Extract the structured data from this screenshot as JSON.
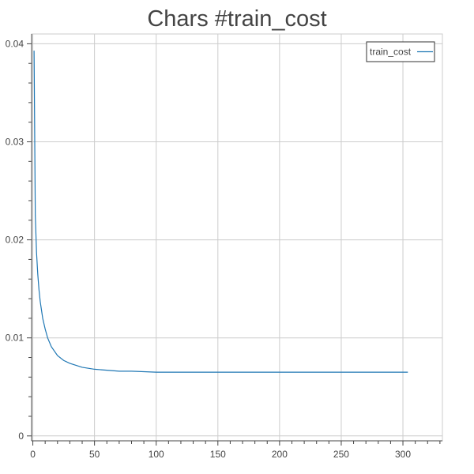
{
  "chart_data": {
    "type": "line",
    "title": "Chars #train_cost",
    "xlabel": "",
    "ylabel": "",
    "xlim": [
      -1,
      332
    ],
    "ylim": [
      -0.0005,
      0.041
    ],
    "x_ticks": [
      0,
      50,
      100,
      150,
      200,
      250,
      300
    ],
    "y_ticks": [
      0,
      0.01,
      0.02,
      0.03,
      0.04
    ],
    "x_tick_labels": [
      "0",
      "50",
      "100",
      "150",
      "200",
      "250",
      "300"
    ],
    "y_tick_labels": [
      "0",
      "0.01",
      "0.02",
      "0.03",
      "0.04"
    ],
    "grid": true,
    "legend_position": "top-right",
    "colors": {
      "series": "#1f77b4",
      "grid": "#cccccc",
      "axis": "#444444"
    },
    "series": [
      {
        "name": "train_cost",
        "x": [
          1,
          2,
          3,
          4,
          5,
          6,
          8,
          10,
          12,
          15,
          20,
          25,
          30,
          35,
          40,
          50,
          60,
          70,
          80,
          100,
          120,
          150,
          200,
          250,
          304
        ],
        "y": [
          0.0393,
          0.0225,
          0.0187,
          0.0165,
          0.0149,
          0.0137,
          0.012,
          0.0109,
          0.01,
          0.0091,
          0.0082,
          0.0077,
          0.0074,
          0.0072,
          0.007,
          0.0068,
          0.0067,
          0.0066,
          0.0066,
          0.0065,
          0.0065,
          0.0065,
          0.0065,
          0.0065,
          0.0065
        ]
      }
    ]
  }
}
